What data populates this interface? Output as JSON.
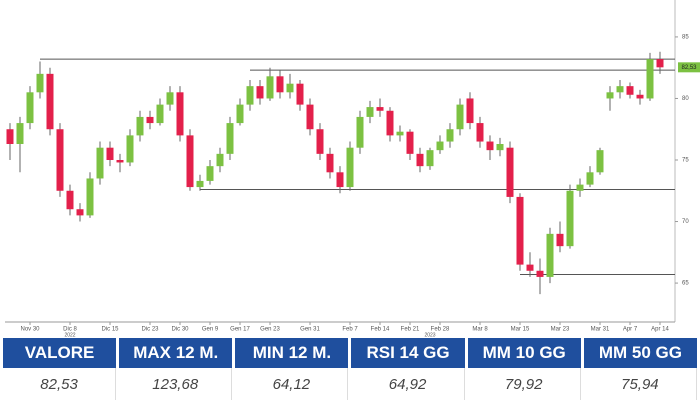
{
  "chart_data": {
    "type": "candlestick",
    "categories": [
      null,
      null,
      "Nov 30",
      null,
      null,
      null,
      "Dic 8",
      null,
      null,
      null,
      "Dic 15",
      null,
      null,
      null,
      "Dic 23",
      null,
      null,
      "Dic 30",
      null,
      null,
      "Gen 9",
      null,
      null,
      "Gen 17",
      null,
      null,
      "Gen 23",
      null,
      null,
      null,
      "Gen 31",
      null,
      null,
      null,
      "Feb 7",
      null,
      null,
      "Feb 14",
      null,
      null,
      "Feb 21",
      null,
      null,
      "Feb 28",
      null,
      null,
      null,
      "Mar 8",
      null,
      null,
      null,
      "Mar 15",
      null,
      null,
      null,
      "Mar 23",
      null,
      null,
      null,
      "Mar 31",
      null,
      null,
      "Apr 7",
      null,
      null,
      "Apr 14"
    ],
    "years": [
      "2022",
      "2023"
    ],
    "open": [
      77.5,
      76.3,
      78,
      80.5,
      82,
      77.5,
      72.5,
      71,
      70.5,
      73.5,
      76,
      75,
      74.8,
      77,
      78.5,
      78,
      79.5,
      80.5,
      77,
      72.8,
      73.3,
      74.5,
      75.5,
      78,
      79.5,
      81,
      80,
      81.8,
      80.5,
      81.2,
      79.5,
      77.5,
      75.5,
      74,
      72.8,
      76,
      78.5,
      79.3,
      79,
      77,
      77.3,
      75.5,
      74.5,
      75.8,
      76.5,
      77.5,
      80,
      78,
      76.5,
      75.8,
      76,
      72,
      66.5,
      66,
      65.5,
      69,
      68,
      72.5,
      73,
      74,
      80,
      80.5,
      81,
      80.3,
      80,
      83.2
    ],
    "high": [
      78,
      78.5,
      81,
      83,
      82.5,
      78,
      73,
      71.5,
      74,
      76.5,
      76.5,
      75.5,
      77.5,
      79,
      79,
      80,
      81,
      81,
      77.5,
      73.8,
      75,
      76,
      78.5,
      80,
      81.5,
      81.5,
      82.5,
      82.3,
      82,
      81.5,
      80,
      78,
      76,
      74.5,
      76.5,
      79,
      79.8,
      80,
      79.3,
      77.8,
      77.5,
      76,
      76,
      77,
      78,
      80,
      80.5,
      78.5,
      77,
      76.8,
      76.5,
      72.3,
      67.5,
      67,
      69.5,
      70,
      73,
      73.5,
      74.5,
      76,
      81,
      81.5,
      81.3,
      80.7,
      83.7,
      83.8
    ],
    "low": [
      75,
      74,
      77.5,
      80,
      77,
      72,
      70.5,
      70,
      70.3,
      73,
      74.5,
      74,
      74.5,
      76.5,
      77.5,
      77.8,
      79,
      76.5,
      72.5,
      72.5,
      73,
      74,
      75,
      77.8,
      79,
      79.5,
      79.8,
      80,
      80,
      79,
      77,
      75,
      73.5,
      72.3,
      72.5,
      75.5,
      78,
      78.5,
      76.5,
      76.5,
      75,
      74,
      74.2,
      75.5,
      76,
      77,
      77.5,
      76,
      75,
      75.3,
      71.5,
      66,
      65.5,
      64.1,
      65,
      67.5,
      67.8,
      72,
      72.8,
      73.8,
      79,
      80,
      80,
      79.5,
      79.8,
      82
    ],
    "close": [
      76.3,
      78,
      80.5,
      82,
      77.5,
      72.5,
      71,
      70.5,
      73.5,
      76,
      75,
      74.8,
      77,
      78.5,
      78,
      79.5,
      80.5,
      77,
      72.8,
      73.3,
      74.5,
      75.5,
      78,
      79.5,
      81,
      80,
      81.8,
      80.5,
      81.2,
      79.5,
      77.5,
      75.5,
      74,
      72.8,
      76,
      78.5,
      79.3,
      79,
      77,
      77.3,
      75.5,
      74.5,
      75.8,
      76.5,
      77.5,
      79.5,
      78,
      76.5,
      75.8,
      76.3,
      72,
      66.5,
      66,
      65.5,
      69,
      68,
      72.5,
      73,
      74,
      75.8,
      80.5,
      81,
      80.3,
      80,
      83.2,
      82.53
    ],
    "up_color": "#7cc142",
    "down_color": "#e3204b",
    "levels": [
      83.2,
      82.3,
      72.6,
      65.7
    ],
    "last_label": "82,53",
    "ylim": [
      62,
      88
    ],
    "yticks": [
      65,
      70,
      75,
      80,
      85
    ]
  },
  "table": {
    "headers": [
      "VALORE",
      "MAX 12 M.",
      "MIN 12 M.",
      "RSI 14 GG",
      "MM 10 GG",
      "MM 50 GG"
    ],
    "rows": [
      [
        "82,53",
        "123,68",
        "64,12",
        "64,92",
        "79,92",
        "75,94"
      ]
    ]
  }
}
